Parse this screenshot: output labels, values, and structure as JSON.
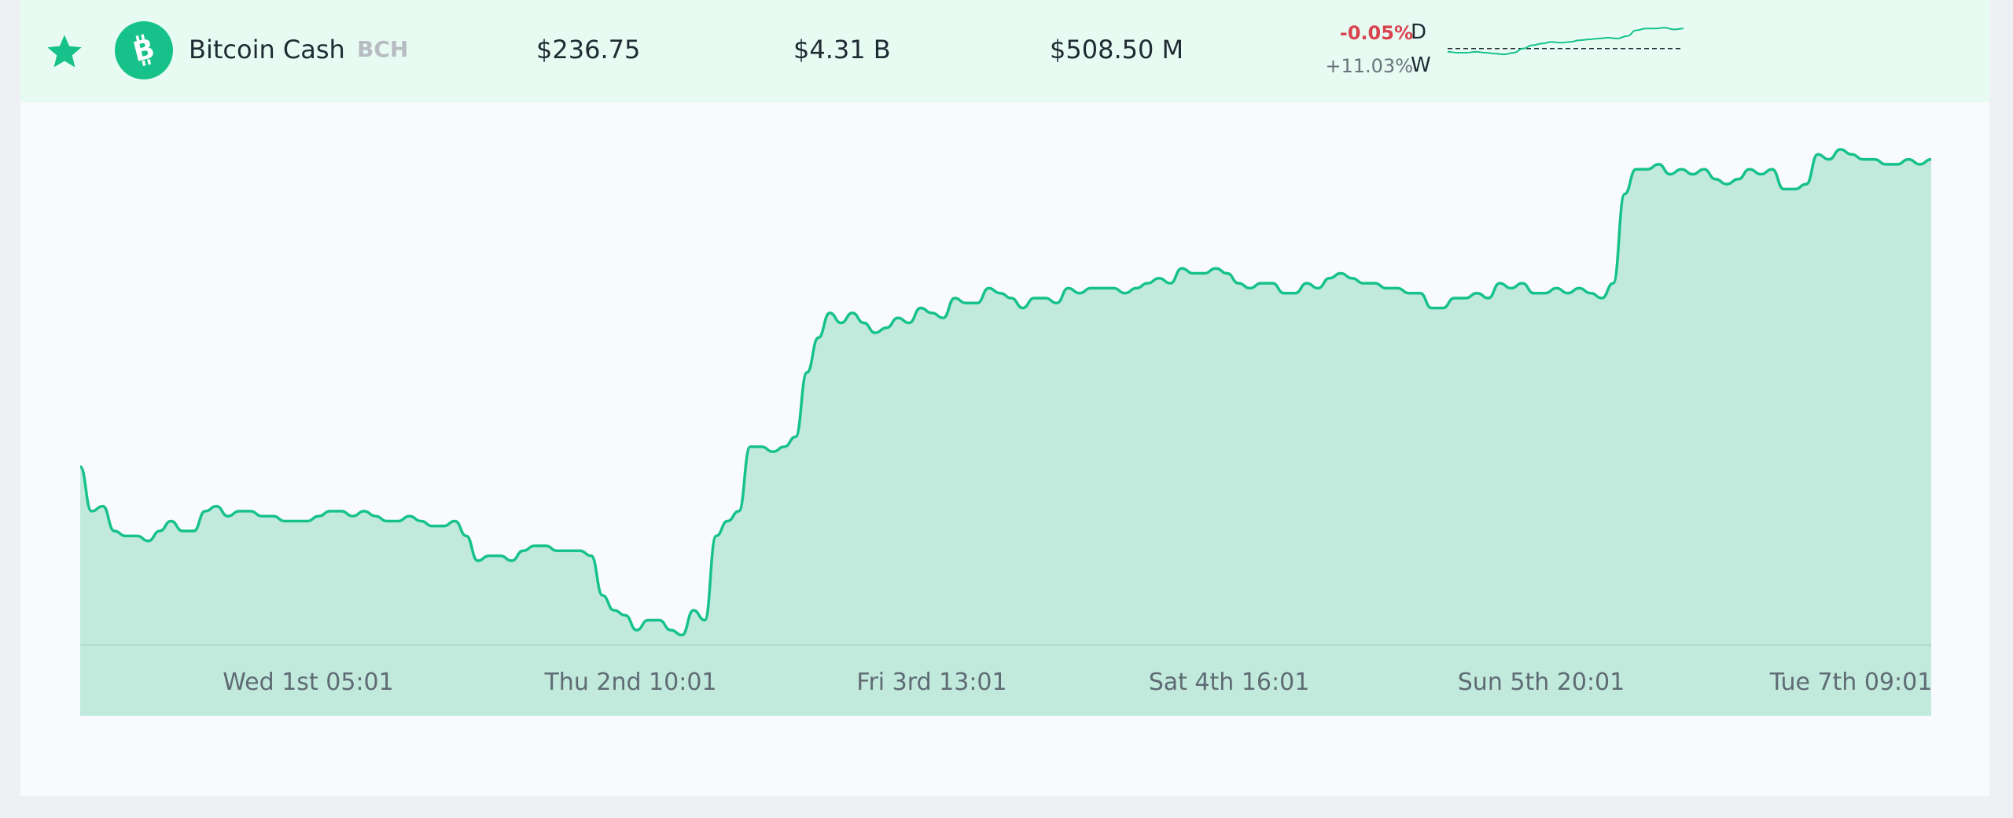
{
  "row": {
    "name": "Bitcoin Cash",
    "symbol": "BCH",
    "price": "$236.75",
    "market_cap": "$4.31 B",
    "volume": "$508.50 M",
    "change_day": "-0.05%",
    "change_week": "+11.03%",
    "label_day": "D",
    "label_week": "W",
    "favorite": true,
    "logo_icon": "bitcoin-cash-logo",
    "star_icon": "star-icon"
  },
  "colors": {
    "accent": "#16c28a",
    "area_fill": "#c1eadd",
    "negative": "#d9434e",
    "row_bg": "#e8fbf3"
  },
  "chart_data": {
    "type": "area",
    "title": "",
    "xlabel": "",
    "ylabel": "",
    "x_ticks": [
      "Wed 1st 05:01",
      "Thu 2nd 10:01",
      "Fri 3rd 13:01",
      "Sat 4th 16:01",
      "Sun 5th 20:01",
      "Tue 7th 09:01"
    ],
    "ylim": [
      0,
      100
    ],
    "grid": false,
    "series": [
      {
        "values": [
          36,
          27,
          28,
          23,
          22,
          22,
          21,
          23,
          25,
          23,
          23,
          27,
          28,
          26,
          27,
          27,
          26,
          26,
          25,
          25,
          25,
          26,
          27,
          27,
          26,
          27,
          26,
          25,
          25,
          26,
          25,
          24,
          24,
          25,
          22,
          17,
          18,
          18,
          17,
          19,
          20,
          20,
          19,
          19,
          19,
          18,
          10,
          7,
          6,
          3,
          5,
          5,
          3,
          2,
          7,
          5,
          22,
          25,
          27,
          40,
          40,
          39,
          40,
          42,
          55,
          62,
          67,
          65,
          67,
          65,
          63,
          64,
          66,
          65,
          68,
          67,
          66,
          70,
          69,
          69,
          72,
          71,
          70,
          68,
          70,
          70,
          69,
          72,
          71,
          72,
          72,
          72,
          71,
          72,
          73,
          74,
          73,
          76,
          75,
          75,
          76,
          75,
          73,
          72,
          73,
          73,
          71,
          71,
          73,
          72,
          74,
          75,
          74,
          73,
          73,
          72,
          72,
          71,
          71,
          68,
          68,
          70,
          70,
          71,
          70,
          73,
          72,
          73,
          71,
          71,
          72,
          71,
          72,
          71,
          70,
          73,
          91,
          96,
          96,
          97,
          95,
          96,
          95,
          96,
          94,
          93,
          94,
          96,
          95,
          96,
          92,
          92,
          93,
          99,
          98,
          100,
          99,
          98,
          98,
          97,
          97,
          98,
          97,
          98
        ]
      }
    ]
  },
  "sparkline": {
    "values": [
      36,
      35,
      35,
      36,
      35,
      34,
      33,
      35,
      40,
      44,
      46,
      48,
      47,
      48,
      50,
      51,
      52,
      53,
      52,
      55,
      62,
      64,
      64,
      65,
      63,
      64
    ],
    "baseline": 40
  }
}
